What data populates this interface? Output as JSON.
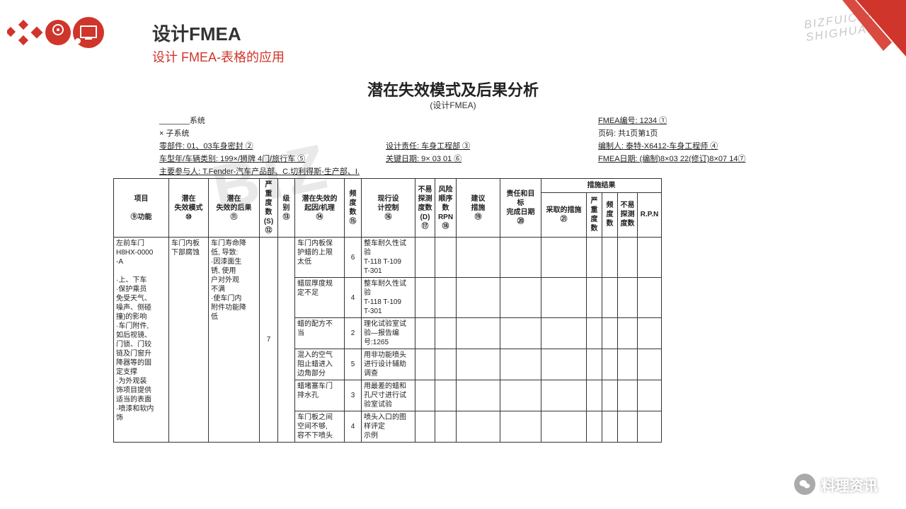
{
  "header": {
    "title_bold": "设计",
    "title_rest": "FMEA",
    "subtitle": "设计 FMEA-表格的应用"
  },
  "form": {
    "title": "潜在失效模式及后果分析",
    "subtitle": "(设计FMEA)"
  },
  "meta": {
    "system_label": "_______系统",
    "subsystem_label": "×   子系统",
    "component": "零部件: 01、03车身密封  ②",
    "model": "车型年/车辆类别: 199×/狮牌  4门/旅行车  ⑤",
    "design_resp": "设计责任: 车身工程部  ③",
    "key_date": "关键日期: 9×  03  01  ⑥",
    "fmea_no": "FMEA编号: 1234   ①",
    "page": "页码: 共1页第1页",
    "prepared": "编制人: 泰特-X6412-车身工程师  ④",
    "fmea_date": "FMEA日期: (编制)8×03 22(修订)8×07 14⑦",
    "participants": "主要参与人: T.Fender-汽车产品部、C.切利得斯-生产部、I."
  },
  "columns": {
    "item": "项目\n\n⑨功能",
    "mode": "潜在\n失效模式\n⑩",
    "effect": "潜在\n失效的后果\n⑪",
    "sev": "严重\n度数\n(S)\n⑫",
    "class": "级别\n⑬",
    "cause": "潜在失效的\n起因/机理\n⑭",
    "occ": "频度数\n⑮",
    "ctrl": "现行设\n计控制\n⑯",
    "det": "不易\n探测\n度数\n(D)\n⑰",
    "rpn": "风险\n顺序\n数\nRPN\n⑱",
    "rec": "建议\n措施\n⑲",
    "resp": "责任和目\n标\n完成日期\n⑳",
    "results": "措施结果",
    "act": "采取的措施\n㉑",
    "sev2": "严重度数",
    "occ2": "频度数",
    "det2": "不易探测度数",
    "rpn2": "R.P.N"
  },
  "row": {
    "item": "左前车门\nH8HX-0000\n-A\n\n·上、下车\n·保护乘员\n免受天气、\n噪声、侧碰\n撞)的影响\n·车门附件,\n如后视镜、\n门锁、门较\n链及门窗升\n降器等的固\n定支撑\n·为外观装\n饰项目提供\n适当的表面\n·喷漆和软内\n饰",
    "mode": "车门内板\n下部腐蚀",
    "effect": "车门寿命降\n低, 导致:\n·因漆面生\n锈, 使用\n户对外观\n不满\n·使车门内\n附件功能降\n低",
    "sev": "7"
  },
  "causes": [
    {
      "cause": "车门内板保\n护蜡的上限\n太低",
      "occ": "6",
      "ctrl": "整车耐久性试\n验\nT-118 T-109\nT-301"
    },
    {
      "cause": "蜡层厚度规\n定不足",
      "occ": "4",
      "ctrl": "整车耐久性试\n验\nT-118 T-109\nT-301"
    },
    {
      "cause": "蜡的配方不\n当",
      "occ": "2",
      "ctrl": "理化试验室试\n验—报告编\n号:1265"
    },
    {
      "cause": "混入的空气\n阻止蜡进入\n边角部分",
      "occ": "5",
      "ctrl": "用非功能喷头\n进行设计辅助\n调查"
    },
    {
      "cause": "蜡堵塞车门\n排水孔",
      "occ": "3",
      "ctrl": "用最差的蜡和\n孔尺寸进行试\n验室试验"
    },
    {
      "cause": "车门板之间\n空间不够,\n容不下喷头",
      "occ": "4",
      "ctrl": "喷头入口的图\n样评定\n示例"
    }
  ],
  "footer": {
    "wechat": "料理资讯"
  },
  "colors": {
    "accent": "#d0352b",
    "border": "#333333",
    "text": "#222222"
  }
}
